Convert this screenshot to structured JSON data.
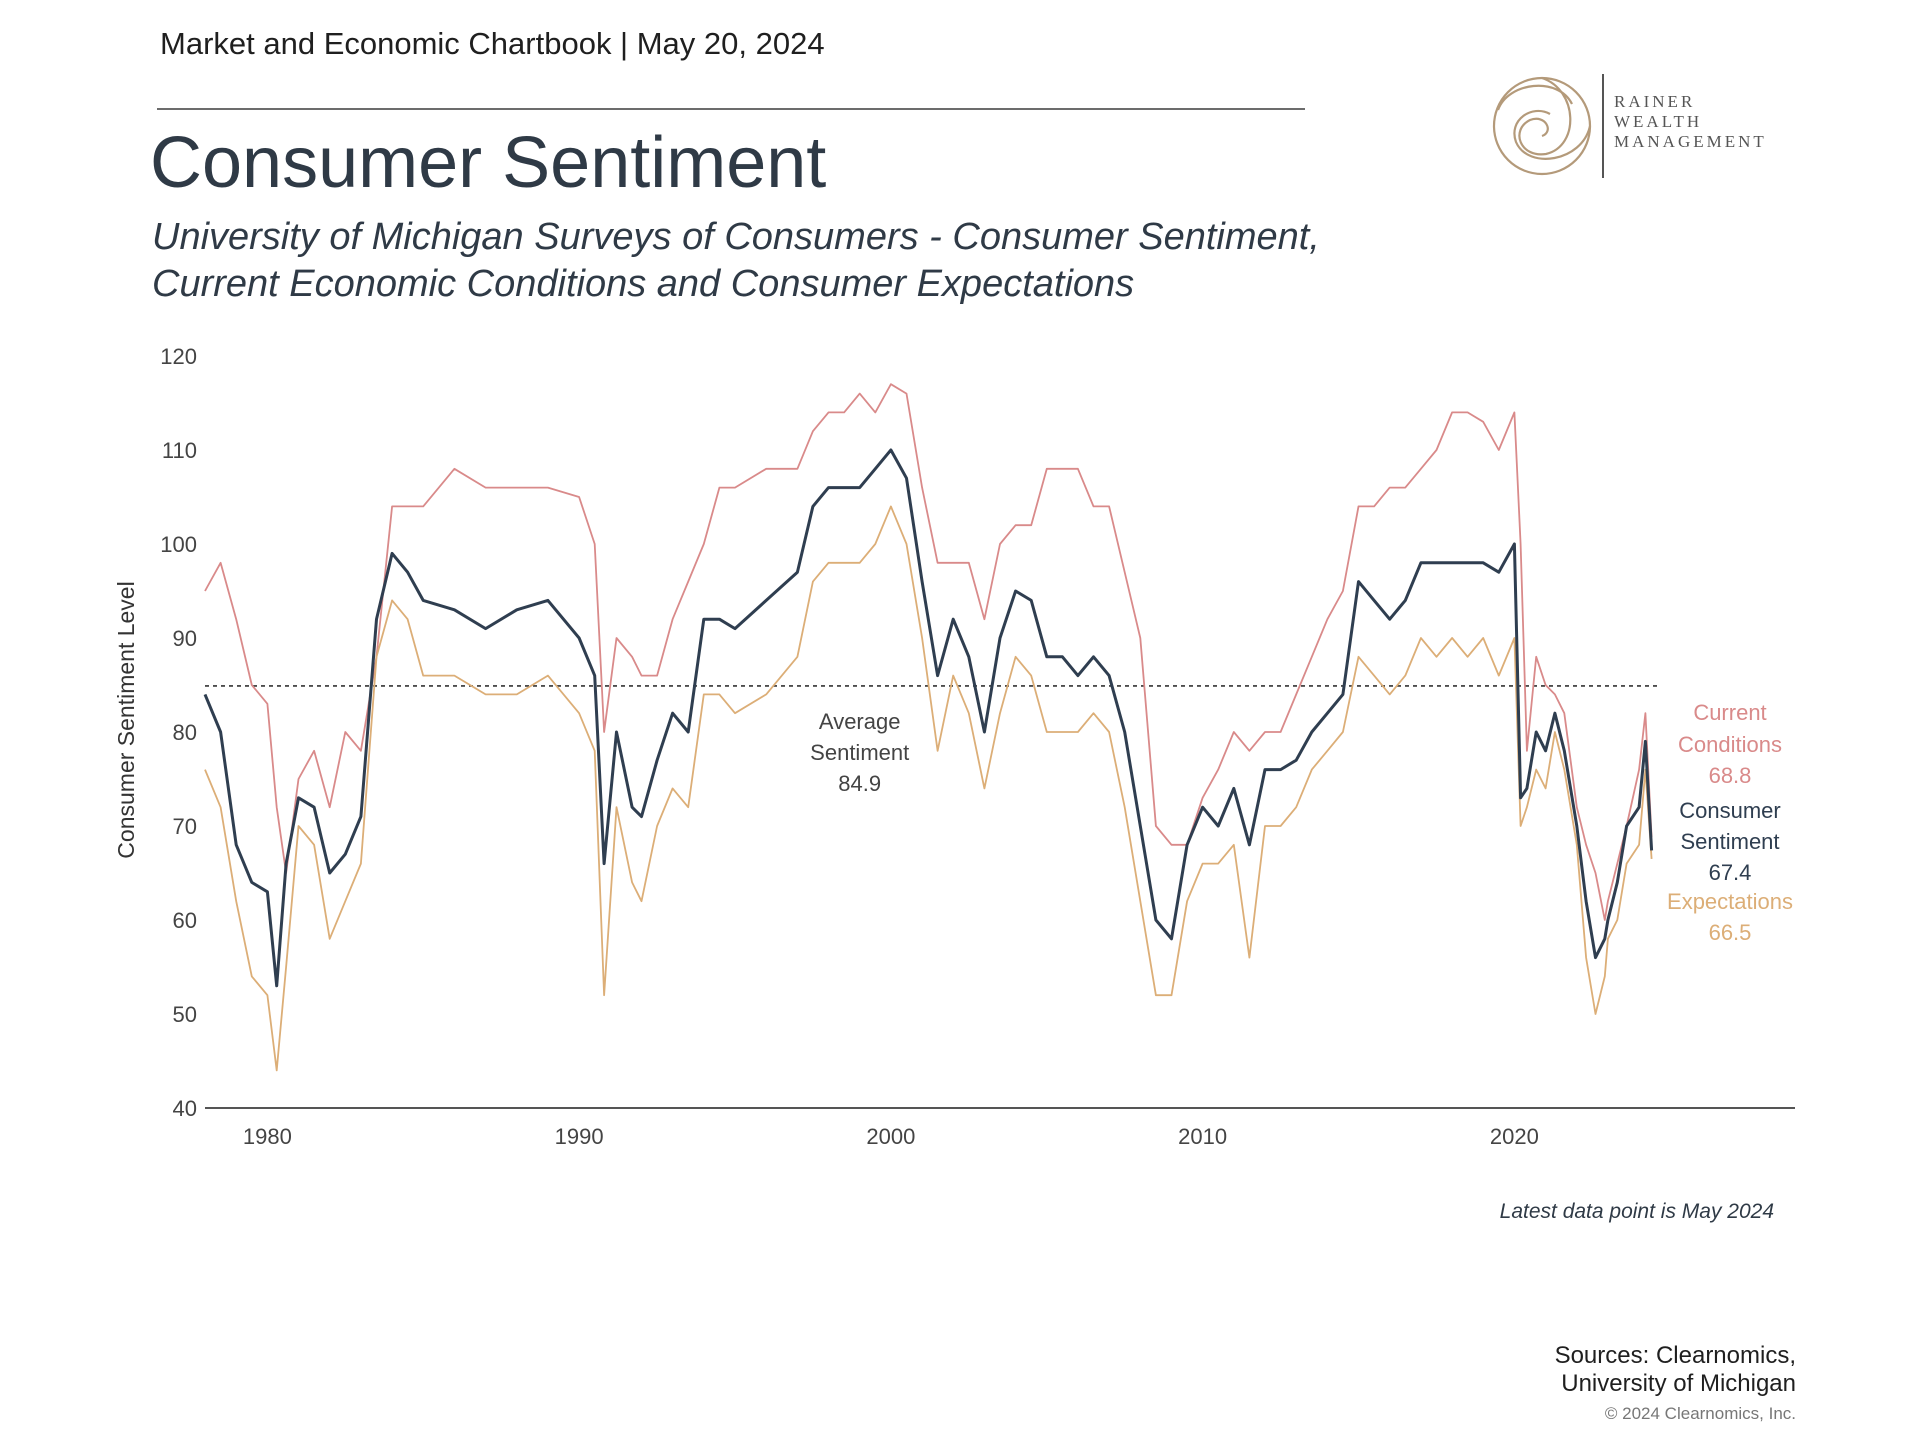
{
  "header": {
    "chartbook_line": "Market and Economic Chartbook | May 20, 2024",
    "title": "Consumer Sentiment",
    "subtitle_line1": "University of Michigan Surveys of Consumers - Consumer Sentiment,",
    "subtitle_line2": "Current Economic Conditions and Consumer Expectations"
  },
  "logo": {
    "line1": "RAINER",
    "line2": "WEALTH",
    "line3": "MANAGEMENT"
  },
  "footer": {
    "latest_note": "Latest data point is May 2024",
    "sources_line1": "Sources: Clearnomics,",
    "sources_line2": "University of Michigan",
    "copyright": "© 2024 Clearnomics, Inc."
  },
  "colors": {
    "current": "#d98a8a",
    "sentiment": "#2f3e50",
    "expectations": "#dcae77",
    "average_line": "#333333"
  },
  "chart_data": {
    "type": "line",
    "ylabel": "Consumer Sentiment Level",
    "xlabel": "",
    "ylim": [
      40,
      120
    ],
    "xlim": [
      1978.0,
      2029.0
    ],
    "yticks": [
      40,
      50,
      60,
      70,
      80,
      90,
      100,
      110,
      120
    ],
    "xticks": [
      1980,
      1990,
      2000,
      2010,
      2020
    ],
    "grid": false,
    "average": {
      "label_line1": "Average",
      "label_line2": "Sentiment",
      "value": 84.9
    },
    "end_labels": [
      {
        "name_line1": "Current",
        "name_line2": "Conditions",
        "value": "68.8",
        "series": "current"
      },
      {
        "name_line1": "Consumer",
        "name_line2": "Sentiment",
        "value": "67.4",
        "series": "sentiment"
      },
      {
        "name_line1": "Expectations",
        "name_line2": "",
        "value": "66.5",
        "series": "expectations"
      }
    ],
    "series": [
      {
        "key": "current",
        "x": [
          1978.0,
          1978.5,
          1979.0,
          1979.5,
          1980.0,
          1980.3,
          1980.6,
          1981.0,
          1981.5,
          1982.0,
          1982.5,
          1983.0,
          1983.5,
          1984.0,
          1984.5,
          1985.0,
          1986.0,
          1987.0,
          1988.0,
          1989.0,
          1990.0,
          1990.5,
          1990.8,
          1991.2,
          1991.7,
          1992.0,
          1992.5,
          1993.0,
          1993.5,
          1994.0,
          1994.5,
          1995.0,
          1996.0,
          1997.0,
          1997.5,
          1998.0,
          1998.5,
          1999.0,
          1999.5,
          2000.0,
          2000.5,
          2001.0,
          2001.5,
          2002.0,
          2002.5,
          2003.0,
          2003.5,
          2004.0,
          2004.5,
          2005.0,
          2005.5,
          2006.0,
          2006.5,
          2007.0,
          2007.5,
          2008.0,
          2008.5,
          2009.0,
          2009.5,
          2010.0,
          2010.5,
          2011.0,
          2011.5,
          2012.0,
          2012.5,
          2013.0,
          2013.5,
          2014.0,
          2014.5,
          2015.0,
          2015.5,
          2016.0,
          2016.5,
          2017.0,
          2017.5,
          2018.0,
          2018.5,
          2019.0,
          2019.5,
          2020.0,
          2020.2,
          2020.4,
          2020.7,
          2021.0,
          2021.3,
          2021.6,
          2022.0,
          2022.3,
          2022.6,
          2022.9,
          2023.0,
          2023.3,
          2023.6,
          2024.0,
          2024.2,
          2024.4
        ],
        "y": [
          95,
          98,
          92,
          85,
          83,
          72,
          65,
          75,
          78,
          72,
          80,
          78,
          88,
          104,
          104,
          104,
          108,
          106,
          106,
          106,
          105,
          100,
          80,
          90,
          88,
          86,
          86,
          92,
          96,
          100,
          106,
          106,
          108,
          108,
          112,
          114,
          114,
          116,
          114,
          117,
          116,
          106,
          98,
          98,
          98,
          92,
          100,
          102,
          102,
          108,
          108,
          108,
          104,
          104,
          97,
          90,
          70,
          68,
          68,
          73,
          76,
          80,
          78,
          80,
          80,
          84,
          88,
          92,
          95,
          104,
          104,
          106,
          106,
          108,
          110,
          114,
          114,
          113,
          110,
          114,
          100,
          78,
          88,
          85,
          84,
          82,
          72,
          68,
          65,
          60,
          62,
          66,
          70,
          76,
          82,
          68.8
        ]
      },
      {
        "key": "sentiment",
        "x": [
          1978.0,
          1978.5,
          1979.0,
          1979.5,
          1980.0,
          1980.3,
          1980.6,
          1981.0,
          1981.5,
          1982.0,
          1982.5,
          1983.0,
          1983.5,
          1984.0,
          1984.5,
          1985.0,
          1986.0,
          1987.0,
          1988.0,
          1989.0,
          1990.0,
          1990.5,
          1990.8,
          1991.2,
          1991.7,
          1992.0,
          1992.5,
          1993.0,
          1993.5,
          1994.0,
          1994.5,
          1995.0,
          1996.0,
          1997.0,
          1997.5,
          1998.0,
          1998.5,
          1999.0,
          1999.5,
          2000.0,
          2000.5,
          2001.0,
          2001.5,
          2002.0,
          2002.5,
          2003.0,
          2003.5,
          2004.0,
          2004.5,
          2005.0,
          2005.5,
          2006.0,
          2006.5,
          2007.0,
          2007.5,
          2008.0,
          2008.5,
          2009.0,
          2009.5,
          2010.0,
          2010.5,
          2011.0,
          2011.5,
          2012.0,
          2012.5,
          2013.0,
          2013.5,
          2014.0,
          2014.5,
          2015.0,
          2015.5,
          2016.0,
          2016.5,
          2017.0,
          2017.5,
          2018.0,
          2018.5,
          2019.0,
          2019.5,
          2020.0,
          2020.2,
          2020.4,
          2020.7,
          2021.0,
          2021.3,
          2021.6,
          2022.0,
          2022.3,
          2022.6,
          2022.9,
          2023.0,
          2023.3,
          2023.6,
          2024.0,
          2024.2,
          2024.4
        ],
        "y": [
          84,
          80,
          68,
          64,
          63,
          53,
          66,
          73,
          72,
          65,
          67,
          71,
          92,
          99,
          97,
          94,
          93,
          91,
          93,
          94,
          90,
          86,
          66,
          80,
          72,
          71,
          77,
          82,
          80,
          92,
          92,
          91,
          94,
          97,
          104,
          106,
          106,
          106,
          108,
          110,
          107,
          96,
          86,
          92,
          88,
          80,
          90,
          95,
          94,
          88,
          88,
          86,
          88,
          86,
          80,
          70,
          60,
          58,
          68,
          72,
          70,
          74,
          68,
          76,
          76,
          77,
          80,
          82,
          84,
          96,
          94,
          92,
          94,
          98,
          98,
          98,
          98,
          98,
          97,
          100,
          73,
          74,
          80,
          78,
          82,
          78,
          70,
          62,
          56,
          58,
          60,
          64,
          70,
          72,
          79,
          67.4
        ]
      },
      {
        "key": "expectations",
        "x": [
          1978.0,
          1978.5,
          1979.0,
          1979.5,
          1980.0,
          1980.3,
          1980.6,
          1981.0,
          1981.5,
          1982.0,
          1982.5,
          1983.0,
          1983.5,
          1984.0,
          1984.5,
          1985.0,
          1986.0,
          1987.0,
          1988.0,
          1989.0,
          1990.0,
          1990.5,
          1990.8,
          1991.2,
          1991.7,
          1992.0,
          1992.5,
          1993.0,
          1993.5,
          1994.0,
          1994.5,
          1995.0,
          1996.0,
          1997.0,
          1997.5,
          1998.0,
          1998.5,
          1999.0,
          1999.5,
          2000.0,
          2000.5,
          2001.0,
          2001.5,
          2002.0,
          2002.5,
          2003.0,
          2003.5,
          2004.0,
          2004.5,
          2005.0,
          2005.5,
          2006.0,
          2006.5,
          2007.0,
          2007.5,
          2008.0,
          2008.5,
          2009.0,
          2009.5,
          2010.0,
          2010.5,
          2011.0,
          2011.5,
          2012.0,
          2012.5,
          2013.0,
          2013.5,
          2014.0,
          2014.5,
          2015.0,
          2015.5,
          2016.0,
          2016.5,
          2017.0,
          2017.5,
          2018.0,
          2018.5,
          2019.0,
          2019.5,
          2020.0,
          2020.2,
          2020.4,
          2020.7,
          2021.0,
          2021.3,
          2021.6,
          2022.0,
          2022.3,
          2022.6,
          2022.9,
          2023.0,
          2023.3,
          2023.6,
          2024.0,
          2024.2,
          2024.4
        ],
        "y": [
          76,
          72,
          62,
          54,
          52,
          44,
          55,
          70,
          68,
          58,
          62,
          66,
          88,
          94,
          92,
          86,
          86,
          84,
          84,
          86,
          82,
          78,
          52,
          72,
          64,
          62,
          70,
          74,
          72,
          84,
          84,
          82,
          84,
          88,
          96,
          98,
          98,
          98,
          100,
          104,
          100,
          90,
          78,
          86,
          82,
          74,
          82,
          88,
          86,
          80,
          80,
          80,
          82,
          80,
          72,
          62,
          52,
          52,
          62,
          66,
          66,
          68,
          56,
          70,
          70,
          72,
          76,
          78,
          80,
          88,
          86,
          84,
          86,
          90,
          88,
          90,
          88,
          90,
          86,
          90,
          70,
          72,
          76,
          74,
          80,
          76,
          68,
          56,
          50,
          54,
          58,
          60,
          66,
          68,
          76,
          66.5
        ]
      }
    ]
  }
}
